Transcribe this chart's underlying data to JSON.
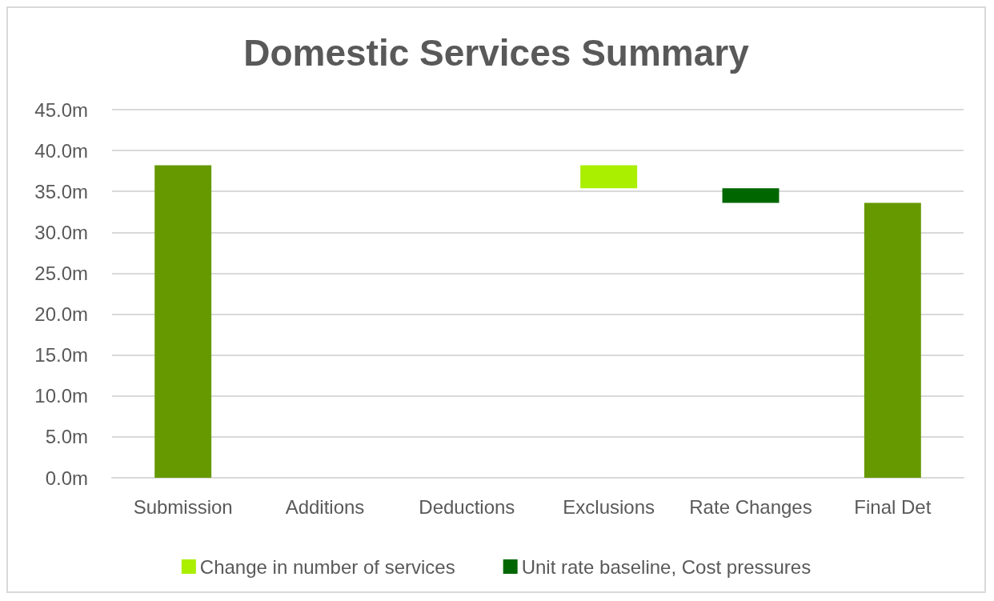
{
  "chart_data": {
    "type": "bar",
    "title": "Domestic Services Summary",
    "categories": [
      "Submission",
      "Additions",
      "Deductions",
      "Exclusions",
      "Rate Changes",
      "Final Det"
    ],
    "series": [
      {
        "color": "#669900",
        "values": [
          38.2,
          null,
          null,
          null,
          null,
          33.6
        ],
        "base": [
          0,
          null,
          null,
          null,
          null,
          0
        ]
      },
      {
        "name": "Change in number of services",
        "color": "#aaee00",
        "values": [
          null,
          null,
          null,
          2.8,
          null,
          null
        ],
        "base": [
          null,
          null,
          null,
          35.4,
          null,
          null
        ]
      },
      {
        "name": "Unit rate baseline, Cost pressures",
        "color": "#006600",
        "values": [
          null,
          null,
          null,
          null,
          1.8,
          null
        ],
        "base": [
          null,
          null,
          null,
          null,
          33.6,
          null
        ]
      }
    ],
    "ylim": [
      0,
      45
    ],
    "yticks": [
      {
        "value": 0,
        "label": "0.0m"
      },
      {
        "value": 5,
        "label": "5.0m"
      },
      {
        "value": 10,
        "label": "10.0m"
      },
      {
        "value": 15,
        "label": "15.0m"
      },
      {
        "value": 20,
        "label": "20.0m"
      },
      {
        "value": 25,
        "label": "25.0m"
      },
      {
        "value": 30,
        "label": "30.0m"
      },
      {
        "value": 35,
        "label": "35.0m"
      },
      {
        "value": 40,
        "label": "40.0m"
      },
      {
        "value": 45,
        "label": "45.0m"
      }
    ],
    "grid": "y",
    "legend": "bottom"
  }
}
